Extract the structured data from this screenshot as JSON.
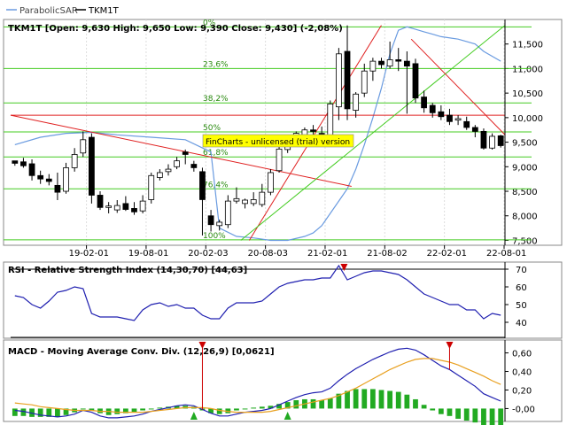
{
  "legend": {
    "sar_label": "ParabolicSAR",
    "symbol_label": "TKM1T"
  },
  "header": {
    "symbol": "TKM1T",
    "ohlc_text": "TKM1T [Open: 9,630  High: 9,650  Low: 9,390  Close: 9,430] (-2,08%)"
  },
  "watermark": "FinCharts - unlicensed (trial) version",
  "rsi_title": "RSI - Relative Strength Index (14,30,70) [44,63]",
  "macd_title": "MACD - Moving Average Conv. Div. (12,26,9) [0,0621]",
  "colors": {
    "candle_up": "#ffffff",
    "candle_down": "#000000",
    "sar": "#6a9be0",
    "trend": "#e02020",
    "fib": "#44cc22",
    "rsi": "#2020b0",
    "macd": "#2020b0",
    "signal": "#e8a020",
    "hist": "#22aa22",
    "marker": "#cc0000",
    "buy": "#22aa22"
  },
  "chart_data": [
    {
      "type": "candlestick",
      "title": "TKM1T",
      "x_tick_labels": [
        "19-02-01",
        "19-08-01",
        "20-02-03",
        "20-08-03",
        "21-02-01",
        "21-08-02",
        "22-02-01",
        "22-08-01"
      ],
      "y_tick_labels": [
        "7,500",
        "8,000",
        "8,500",
        "9,000",
        "9,500",
        "10,000",
        "10,500",
        "11,000",
        "11,500"
      ],
      "ylim": [
        7.4,
        12.0
      ],
      "fibonacci_labels": [
        "0%",
        "23,6%",
        "38,2%",
        "50%",
        "61,8%",
        "76,4%",
        "100%"
      ],
      "fibonacci_levels": [
        11.85,
        11.0,
        10.3,
        9.71,
        9.2,
        8.55,
        7.51
      ],
      "candles": [
        {
          "o": 9.12,
          "h": 9.12,
          "l": 9.02,
          "c": 9.07
        },
        {
          "o": 9.1,
          "h": 9.18,
          "l": 8.98,
          "c": 9.02
        },
        {
          "o": 9.06,
          "h": 9.15,
          "l": 8.72,
          "c": 8.82
        },
        {
          "o": 8.82,
          "h": 8.92,
          "l": 8.65,
          "c": 8.75
        },
        {
          "o": 8.75,
          "h": 8.85,
          "l": 8.62,
          "c": 8.7
        },
        {
          "o": 8.62,
          "h": 8.88,
          "l": 8.32,
          "c": 8.48
        },
        {
          "o": 8.5,
          "h": 9.08,
          "l": 8.45,
          "c": 8.98
        },
        {
          "o": 8.98,
          "h": 9.38,
          "l": 8.9,
          "c": 9.25
        },
        {
          "o": 9.28,
          "h": 9.72,
          "l": 9.2,
          "c": 9.55
        },
        {
          "o": 9.6,
          "h": 9.68,
          "l": 8.25,
          "c": 8.42
        },
        {
          "o": 8.42,
          "h": 8.5,
          "l": 8.12,
          "c": 8.17
        },
        {
          "o": 8.17,
          "h": 8.28,
          "l": 8.05,
          "c": 8.2
        },
        {
          "o": 8.12,
          "h": 8.32,
          "l": 8.06,
          "c": 8.21
        },
        {
          "o": 8.25,
          "h": 8.4,
          "l": 8.1,
          "c": 8.13
        },
        {
          "o": 8.15,
          "h": 8.28,
          "l": 8.02,
          "c": 8.08
        },
        {
          "o": 8.1,
          "h": 8.42,
          "l": 8.05,
          "c": 8.3
        },
        {
          "o": 8.33,
          "h": 8.88,
          "l": 8.25,
          "c": 8.82
        },
        {
          "o": 8.78,
          "h": 8.95,
          "l": 8.72,
          "c": 8.88
        },
        {
          "o": 8.9,
          "h": 9.05,
          "l": 8.82,
          "c": 8.95
        },
        {
          "o": 9.0,
          "h": 9.2,
          "l": 8.95,
          "c": 9.12
        },
        {
          "o": 9.3,
          "h": 9.35,
          "l": 9.05,
          "c": 9.25
        },
        {
          "o": 9.05,
          "h": 9.12,
          "l": 8.9,
          "c": 8.98
        },
        {
          "o": 8.9,
          "h": 8.98,
          "l": 7.6,
          "c": 8.33
        },
        {
          "o": 8.0,
          "h": 8.12,
          "l": 7.68,
          "c": 7.82
        },
        {
          "o": 7.8,
          "h": 7.92,
          "l": 7.7,
          "c": 7.87
        },
        {
          "o": 7.82,
          "h": 8.42,
          "l": 7.75,
          "c": 8.3
        },
        {
          "o": 8.3,
          "h": 8.58,
          "l": 8.25,
          "c": 8.35
        },
        {
          "o": 8.25,
          "h": 8.35,
          "l": 8.15,
          "c": 8.32
        },
        {
          "o": 8.25,
          "h": 8.48,
          "l": 8.2,
          "c": 8.33
        },
        {
          "o": 8.23,
          "h": 8.65,
          "l": 8.18,
          "c": 8.48
        },
        {
          "o": 8.48,
          "h": 8.95,
          "l": 8.42,
          "c": 8.88
        },
        {
          "o": 8.92,
          "h": 9.42,
          "l": 8.88,
          "c": 9.36
        },
        {
          "o": 9.35,
          "h": 9.6,
          "l": 9.28,
          "c": 9.52
        },
        {
          "o": 9.52,
          "h": 9.72,
          "l": 9.42,
          "c": 9.68
        },
        {
          "o": 9.65,
          "h": 9.8,
          "l": 9.6,
          "c": 9.75
        },
        {
          "o": 9.75,
          "h": 9.85,
          "l": 9.62,
          "c": 9.72
        },
        {
          "o": 9.68,
          "h": 9.82,
          "l": 9.58,
          "c": 9.65
        },
        {
          "o": 9.62,
          "h": 10.35,
          "l": 9.55,
          "c": 10.28
        },
        {
          "o": 10.22,
          "h": 11.42,
          "l": 9.95,
          "c": 11.3
        },
        {
          "o": 11.35,
          "h": 11.88,
          "l": 9.95,
          "c": 10.18
        },
        {
          "o": 10.15,
          "h": 10.52,
          "l": 10.0,
          "c": 10.48
        },
        {
          "o": 10.5,
          "h": 11.1,
          "l": 10.42,
          "c": 10.95
        },
        {
          "o": 10.95,
          "h": 11.22,
          "l": 10.75,
          "c": 11.15
        },
        {
          "o": 11.15,
          "h": 11.22,
          "l": 11.0,
          "c": 11.08
        },
        {
          "o": 11.05,
          "h": 11.55,
          "l": 11.0,
          "c": 11.18
        },
        {
          "o": 11.18,
          "h": 11.42,
          "l": 10.95,
          "c": 11.15
        },
        {
          "o": 11.15,
          "h": 11.35,
          "l": 10.08,
          "c": 11.05
        },
        {
          "o": 11.1,
          "h": 11.2,
          "l": 10.3,
          "c": 10.4
        },
        {
          "o": 10.42,
          "h": 10.55,
          "l": 10.1,
          "c": 10.2
        },
        {
          "o": 10.25,
          "h": 10.3,
          "l": 10.0,
          "c": 10.1
        },
        {
          "o": 10.12,
          "h": 10.25,
          "l": 9.95,
          "c": 10.02
        },
        {
          "o": 10.05,
          "h": 10.18,
          "l": 9.85,
          "c": 9.92
        },
        {
          "o": 9.95,
          "h": 10.05,
          "l": 9.85,
          "c": 9.98
        },
        {
          "o": 9.92,
          "h": 10.02,
          "l": 9.75,
          "c": 9.8
        },
        {
          "o": 9.8,
          "h": 9.85,
          "l": 9.6,
          "c": 9.72
        },
        {
          "o": 9.72,
          "h": 9.78,
          "l": 9.35,
          "c": 9.38
        },
        {
          "o": 9.38,
          "h": 9.68,
          "l": 9.35,
          "c": 9.62
        },
        {
          "o": 9.63,
          "h": 9.65,
          "l": 9.39,
          "c": 9.43
        }
      ],
      "sar_points": [
        [
          0,
          9.45
        ],
        [
          3,
          9.6
        ],
        [
          6,
          9.68
        ],
        [
          9,
          9.7
        ],
        [
          12,
          9.65
        ],
        [
          16,
          9.6
        ],
        [
          20,
          9.55
        ],
        [
          23,
          9.3
        ],
        [
          24,
          7.75
        ],
        [
          26,
          7.58
        ],
        [
          28,
          7.55
        ],
        [
          30,
          7.5
        ],
        [
          32,
          7.5
        ],
        [
          34,
          7.58
        ],
        [
          35,
          7.65
        ],
        [
          36,
          7.8
        ],
        [
          37,
          8.05
        ],
        [
          38,
          8.3
        ],
        [
          39,
          8.55
        ],
        [
          40,
          8.95
        ],
        [
          41,
          9.45
        ],
        [
          42,
          10.0
        ],
        [
          43,
          10.6
        ],
        [
          44,
          11.3
        ],
        [
          45,
          11.78
        ],
        [
          46,
          11.85
        ],
        [
          47,
          11.8
        ],
        [
          48,
          11.75
        ],
        [
          49,
          11.7
        ],
        [
          50,
          11.65
        ],
        [
          52,
          11.6
        ],
        [
          54,
          11.5
        ],
        [
          55,
          11.35
        ],
        [
          57,
          11.15
        ]
      ],
      "trendlines": [
        {
          "from": [
            -0.5,
            10.05
          ],
          "to": [
            57.5,
            10.05
          ]
        },
        {
          "from": [
            -0.5,
            10.05
          ],
          "to": [
            39.5,
            8.6
          ]
        },
        {
          "from": [
            27.5,
            7.5
          ],
          "to": [
            43,
            11.88
          ]
        },
        {
          "from": [
            26.5,
            7.5
          ],
          "to": [
            57.5,
            11.88
          ]
        },
        {
          "from": [
            46.5,
            11.6
          ],
          "to": [
            57.5,
            9.65
          ]
        }
      ]
    },
    {
      "type": "line",
      "title": "RSI - Relative Strength Index (14,30,70) [44,63]",
      "y_tick_labels": [
        "40",
        "50",
        "60",
        "70"
      ],
      "ylim": [
        32,
        73
      ],
      "reference_lines": [
        30,
        70
      ],
      "values": [
        55,
        54,
        50,
        48,
        52,
        57,
        58,
        60,
        59,
        45,
        43,
        43,
        43,
        42,
        41,
        47,
        50,
        51,
        49,
        50,
        48,
        48,
        44,
        42,
        42,
        48,
        51,
        51,
        51,
        52,
        56,
        60,
        62,
        63,
        64,
        64,
        65,
        65,
        72,
        64,
        66,
        68,
        69,
        69,
        68,
        67,
        64,
        60,
        56,
        54,
        52,
        50,
        50,
        47,
        47,
        42,
        45,
        44
      ],
      "markers": [
        38
      ]
    },
    {
      "type": "line",
      "title": "MACD - Moving Average Conv. Div. (12,26,9) [0,0621]",
      "y_tick_labels": [
        "-0,00",
        "0,20",
        "0,40",
        "0,60"
      ],
      "ylim": [
        -0.12,
        0.72
      ],
      "series": [
        {
          "values": [
            -0.02,
            -0.03,
            -0.05,
            -0.07,
            -0.08,
            -0.09,
            -0.08,
            -0.06,
            -0.02,
            -0.04,
            -0.08,
            -0.1,
            -0.1,
            -0.09,
            -0.08,
            -0.06,
            -0.03,
            -0.01,
            0.01,
            0.03,
            0.04,
            0.03,
            -0.01,
            -0.05,
            -0.08,
            -0.08,
            -0.06,
            -0.04,
            -0.03,
            -0.02,
            0.0,
            0.04,
            0.08,
            0.12,
            0.15,
            0.17,
            0.18,
            0.22,
            0.3,
            0.37,
            0.43,
            0.48,
            0.53,
            0.57,
            0.61,
            0.64,
            0.65,
            0.63,
            0.58,
            0.52,
            0.46,
            0.42,
            0.36,
            0.3,
            0.24,
            0.16,
            0.12,
            0.08
          ]
        },
        {
          "values": [
            0.06,
            0.05,
            0.04,
            0.02,
            0.01,
            0.0,
            -0.01,
            -0.02,
            -0.02,
            -0.02,
            -0.03,
            -0.03,
            -0.04,
            -0.04,
            -0.04,
            -0.04,
            -0.03,
            -0.02,
            -0.01,
            0.0,
            0.01,
            0.01,
            0.01,
            0.0,
            -0.02,
            -0.03,
            -0.04,
            -0.04,
            -0.04,
            -0.04,
            -0.03,
            -0.01,
            0.01,
            0.03,
            0.05,
            0.07,
            0.09,
            0.11,
            0.14,
            0.18,
            0.22,
            0.27,
            0.32,
            0.37,
            0.42,
            0.46,
            0.5,
            0.53,
            0.54,
            0.54,
            0.52,
            0.5,
            0.47,
            0.43,
            0.39,
            0.35,
            0.3,
            0.26
          ]
        }
      ],
      "histogram": [
        -0.08,
        -0.08,
        -0.09,
        -0.09,
        -0.09,
        -0.09,
        -0.07,
        -0.04,
        0.0,
        -0.02,
        -0.05,
        -0.07,
        -0.06,
        -0.05,
        -0.04,
        -0.02,
        0.0,
        0.01,
        0.02,
        0.03,
        0.03,
        0.02,
        -0.02,
        -0.05,
        -0.06,
        -0.05,
        -0.02,
        0.0,
        0.01,
        0.02,
        0.03,
        0.05,
        0.07,
        0.09,
        0.1,
        0.1,
        0.09,
        0.11,
        0.16,
        0.19,
        0.21,
        0.21,
        0.21,
        0.2,
        0.19,
        0.18,
        0.15,
        0.1,
        0.04,
        -0.02,
        -0.06,
        -0.08,
        -0.11,
        -0.13,
        -0.15,
        -0.19,
        -0.18,
        -0.18
      ],
      "sell_markers": [
        22,
        51
      ],
      "buy_markers": [
        21,
        32
      ]
    }
  ]
}
